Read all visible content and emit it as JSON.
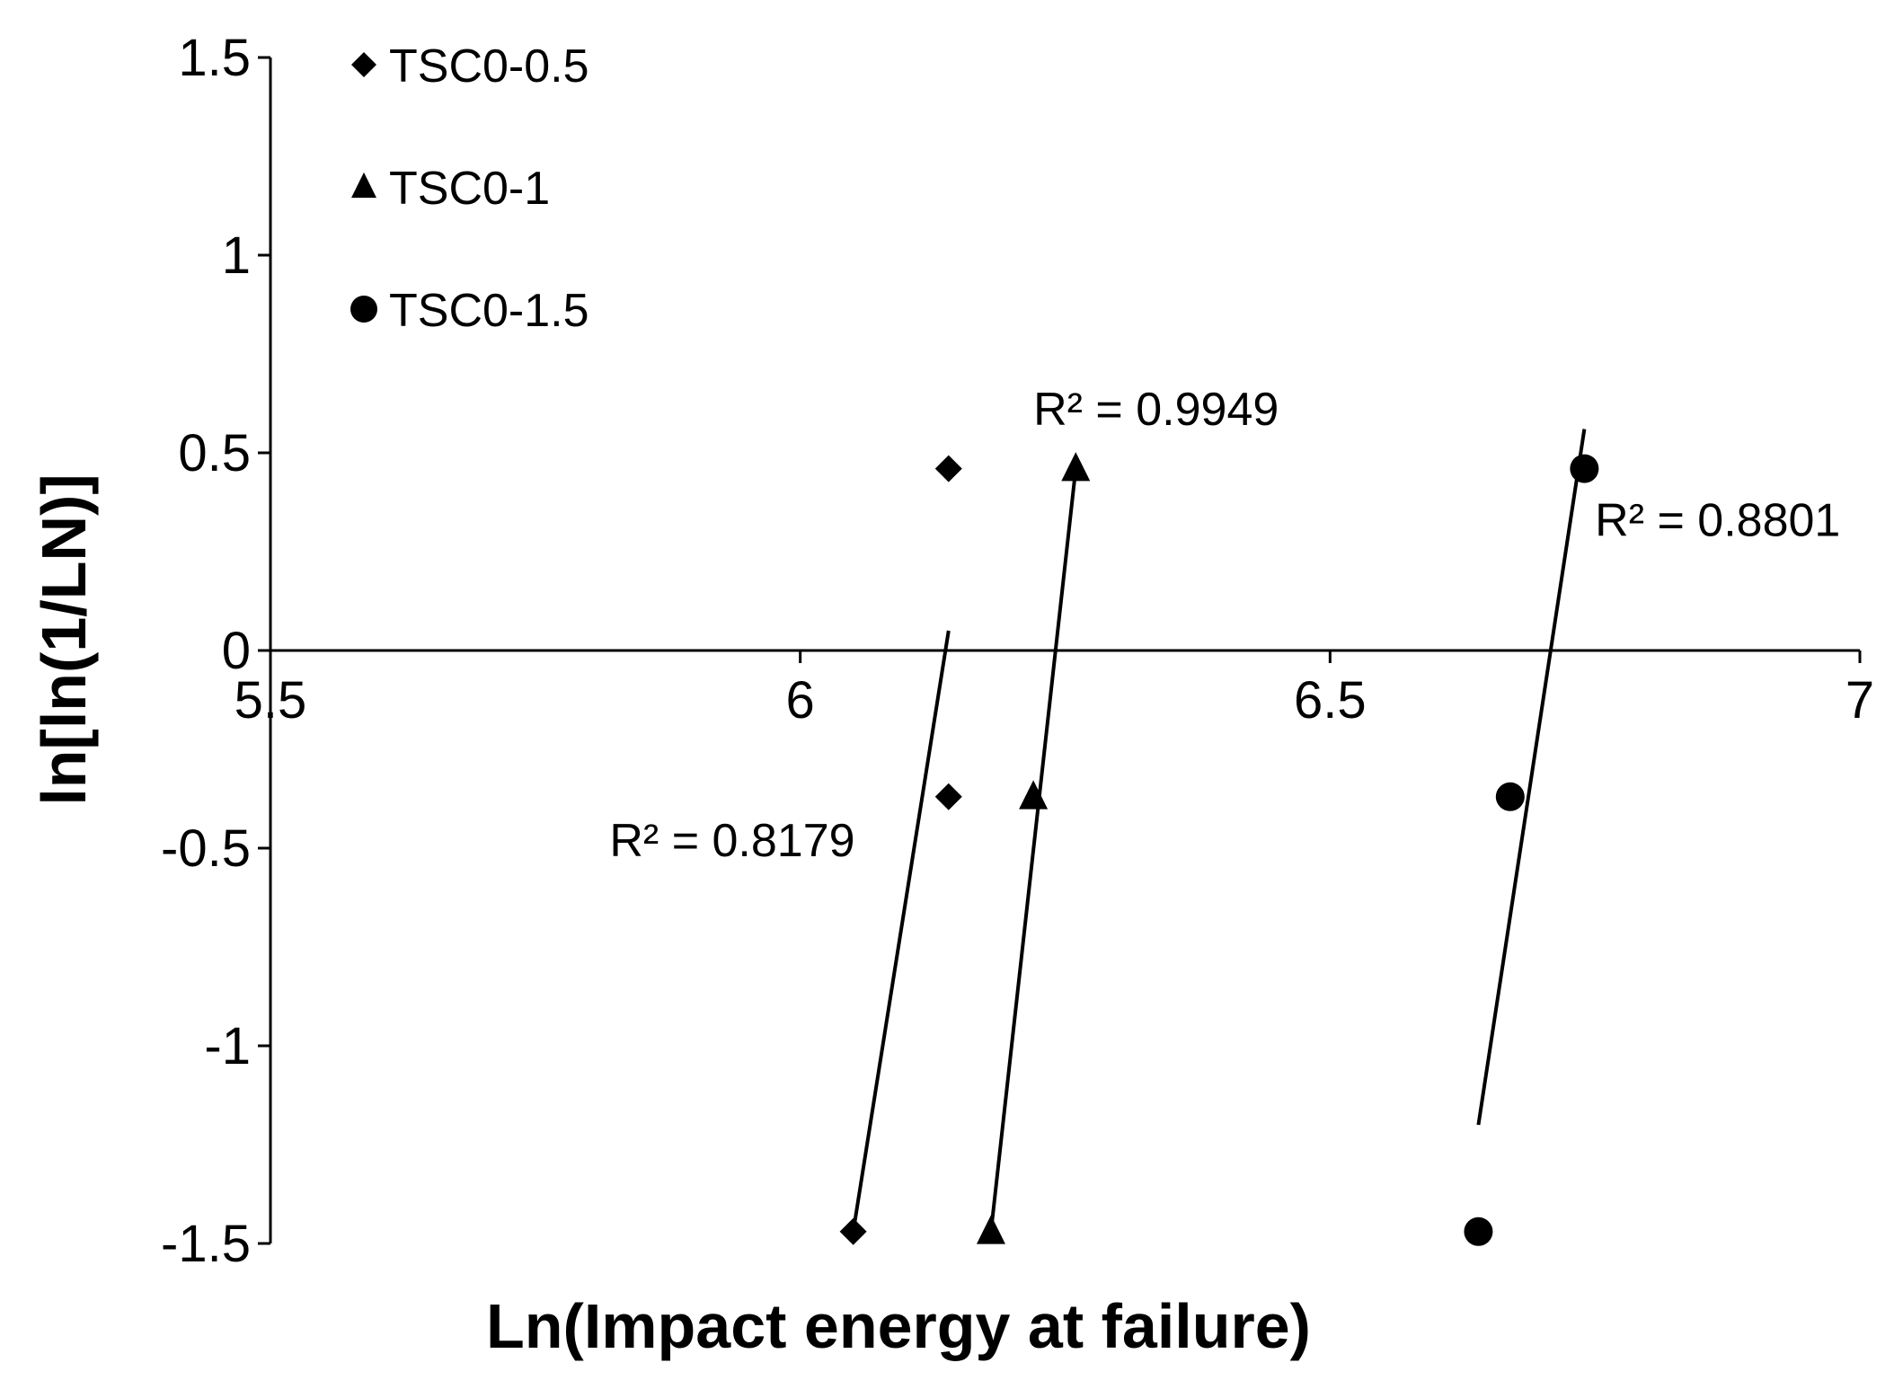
{
  "chart_data": {
    "type": "scatter",
    "xlabel": "Ln(Impact energy at failure)",
    "ylabel": "ln[ln(1/LN)]",
    "xlim": [
      5.5,
      7
    ],
    "ylim": [
      -1.5,
      1.5
    ],
    "xticks": [
      "5.5",
      "6",
      "6.5",
      "7"
    ],
    "yticks": [
      "1.5",
      "1",
      "0.5",
      "0",
      "-0.5",
      "-1",
      "-1.5"
    ],
    "legend_position": "top-left",
    "series": [
      {
        "name": "TSC0-0.5",
        "marker": "diamond",
        "points": [
          {
            "x": 6.05,
            "y": -1.47
          },
          {
            "x": 6.14,
            "y": -0.37
          },
          {
            "x": 6.14,
            "y": 0.46
          }
        ],
        "trendline": {
          "x": [
            6.05,
            6.14
          ],
          "y": [
            -1.47,
            0.05
          ]
        },
        "r2_label": "R² = 0.8179",
        "r2_anchor": {
          "x": 5.82,
          "y": -0.52
        }
      },
      {
        "name": "TSC0-1",
        "marker": "triangle",
        "points": [
          {
            "x": 6.18,
            "y": -1.47
          },
          {
            "x": 6.22,
            "y": -0.37
          },
          {
            "x": 6.26,
            "y": 0.46
          }
        ],
        "trendline": {
          "x": [
            6.18,
            6.26
          ],
          "y": [
            -1.47,
            0.46
          ]
        },
        "r2_label": "R² = 0.9949",
        "r2_anchor": {
          "x": 6.22,
          "y": 0.57
        }
      },
      {
        "name": "TSC0-1.5",
        "marker": "circle",
        "points": [
          {
            "x": 6.64,
            "y": -1.47
          },
          {
            "x": 6.67,
            "y": -0.37
          },
          {
            "x": 6.74,
            "y": 0.46
          }
        ],
        "trendline": {
          "x": [
            6.64,
            6.74
          ],
          "y": [
            -1.2,
            0.56
          ]
        },
        "r2_label": "R² = 0.8801",
        "r2_anchor": {
          "x": 6.75,
          "y": 0.29
        }
      }
    ]
  }
}
